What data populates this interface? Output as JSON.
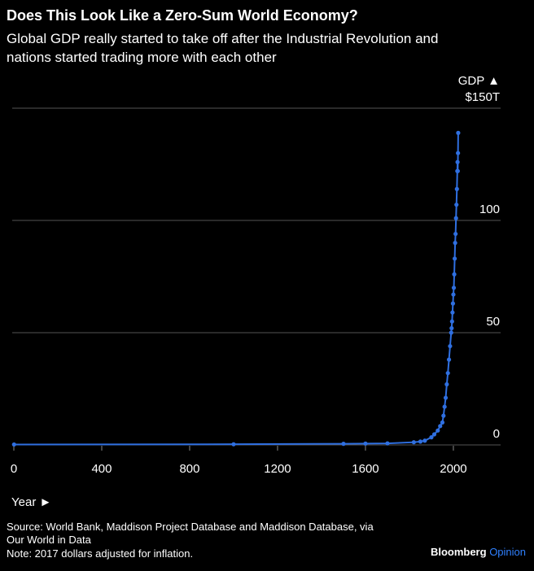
{
  "chart_data": {
    "type": "line",
    "title": "Does This Look Like a Zero-Sum World Economy?",
    "subtitle": [
      "Global GDP really started to take off after the Industrial Revolution and",
      "nations started trading more with each other"
    ],
    "y_label": "GDP ▲",
    "x_label": "Year ►",
    "source": [
      "Source: World Bank, Maddison Project Database and Maddison Database, via",
      "Our World in Data",
      "Note: 2017 dollars adjusted for inflation."
    ],
    "brand": [
      "Bloomberg",
      "Opinion"
    ],
    "x": [
      1,
      1000,
      1500,
      1600,
      1700,
      1820,
      1850,
      1870,
      1900,
      1913,
      1929,
      1940,
      1950,
      1955,
      1960,
      1965,
      1970,
      1975,
      1980,
      1985,
      1990,
      1992,
      1994,
      1996,
      1998,
      2000,
      2002,
      2004,
      2006,
      2008,
      2010,
      2012,
      2014,
      2016,
      2018,
      2019,
      2020,
      2021,
      2022
    ],
    "series": [
      {
        "name": "GDP",
        "color": "#2f6fe0",
        "values": [
          0.2,
          0.3,
          0.5,
          0.6,
          0.7,
          1.2,
          1.5,
          1.9,
          3.4,
          4.7,
          6.4,
          8.4,
          10,
          13,
          17,
          21,
          27,
          32,
          38,
          44,
          50,
          52,
          55,
          59,
          63,
          67,
          70,
          76,
          83,
          90,
          94,
          101,
          107,
          114,
          122,
          126,
          122,
          130,
          139
        ]
      }
    ],
    "xlim": [
      0,
      2215
    ],
    "xticks": [
      0,
      400,
      800,
      1200,
      1600,
      2000
    ],
    "ylim": [
      0,
      150
    ],
    "yticks": [
      0,
      50,
      100,
      {
        "value": 150,
        "label": "$150T"
      }
    ],
    "grid": true
  }
}
